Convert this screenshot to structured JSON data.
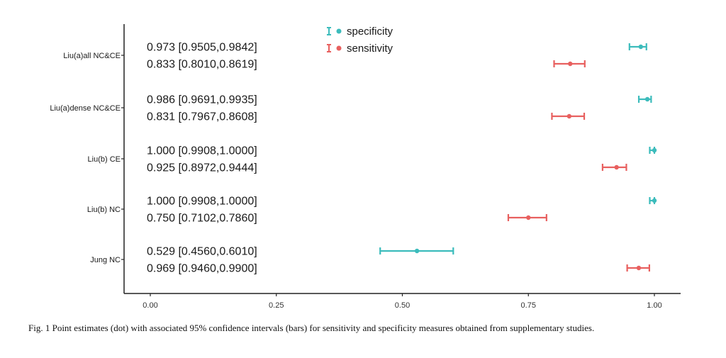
{
  "caption": "Fig. 1 Point estimates (dot) with associated 95% confidence intervals (bars) for sensitivity and specificity measures obtained from supplementary studies.",
  "colors": {
    "specificity": "#3cbcbc",
    "sensitivity": "#e8605f",
    "axis": "#222222"
  },
  "chart_data": {
    "type": "forest",
    "title": "",
    "xlabel": "",
    "ylabel": "",
    "xlim": [
      0,
      1
    ],
    "x_ticks": [
      "0.00",
      "0.25",
      "0.50",
      "0.75",
      "1.00"
    ],
    "legend": {
      "placement": "top-center",
      "entries": [
        "specificity",
        "sensitivity"
      ]
    },
    "grid": false,
    "rows": [
      {
        "study": "Liu(a)all NC&CE",
        "specificity": {
          "estimate": 0.973,
          "lower": 0.9505,
          "upper": 0.9842,
          "label": "0.973 [0.9505,0.9842]"
        },
        "sensitivity": {
          "estimate": 0.833,
          "lower": 0.801,
          "upper": 0.8619,
          "label": "0.833 [0.8010,0.8619]"
        }
      },
      {
        "study": "Liu(a)dense NC&CE",
        "specificity": {
          "estimate": 0.986,
          "lower": 0.9691,
          "upper": 0.9935,
          "label": "0.986 [0.9691,0.9935]"
        },
        "sensitivity": {
          "estimate": 0.831,
          "lower": 0.7967,
          "upper": 0.8608,
          "label": "0.831 [0.7967,0.8608]"
        }
      },
      {
        "study": "Liu(b) CE",
        "specificity": {
          "estimate": 1.0,
          "lower": 0.9908,
          "upper": 1.0,
          "label": "1.000 [0.9908,1.0000]"
        },
        "sensitivity": {
          "estimate": 0.925,
          "lower": 0.8972,
          "upper": 0.9444,
          "label": "0.925 [0.8972,0.9444]"
        }
      },
      {
        "study": "Liu(b) NC",
        "specificity": {
          "estimate": 1.0,
          "lower": 0.9908,
          "upper": 1.0,
          "label": "1.000 [0.9908,1.0000]"
        },
        "sensitivity": {
          "estimate": 0.75,
          "lower": 0.7102,
          "upper": 0.786,
          "label": "0.750 [0.7102,0.7860]"
        }
      },
      {
        "study": "Jung NC",
        "specificity": {
          "estimate": 0.529,
          "lower": 0.456,
          "upper": 0.601,
          "label": "0.529 [0.4560,0.6010]"
        },
        "sensitivity": {
          "estimate": 0.969,
          "lower": 0.946,
          "upper": 0.99,
          "label": "0.969 [0.9460,0.9900]"
        }
      }
    ]
  }
}
